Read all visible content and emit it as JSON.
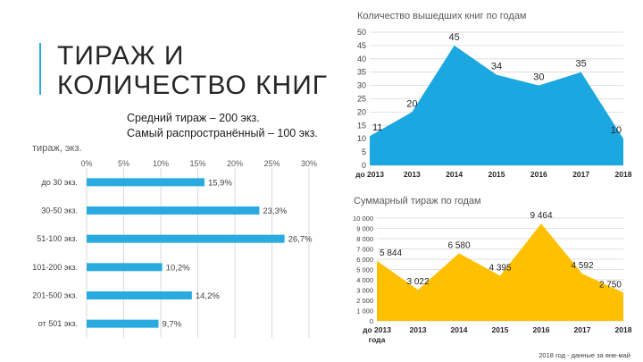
{
  "title": {
    "line1": "ТИРАЖ И",
    "line2": "КОЛИЧЕСТВО КНИГ"
  },
  "summary": {
    "avg": "Средний тираж – 200 экз.",
    "common": "Самый распространённый – 100 экз."
  },
  "footnote": "2018 год - данные за янв-май",
  "colors": {
    "accent": "#29abe2",
    "bars": "#29abe2",
    "books_area": "#1ba8e0",
    "circulation_area": "#ffc000",
    "grid": "#d9d9d9"
  },
  "chart_data": [
    {
      "type": "bar",
      "orientation": "horizontal",
      "title": "",
      "ylabel": "тираж, экз.",
      "categories": [
        "до 30 экз.",
        "30-50 экз.",
        "51-100 экз.",
        "101-200 экз.",
        "201-500 экз.",
        "от 501 экз."
      ],
      "values": [
        15.9,
        23.3,
        26.7,
        10.2,
        14.2,
        9.7
      ],
      "value_labels": [
        "15,9%",
        "23,3%",
        "26,7%",
        "10,2%",
        "14,2%",
        "9,7%"
      ],
      "xticks": [
        "0%",
        "5%",
        "10%",
        "15%",
        "20%",
        "25%",
        "30%"
      ],
      "xlim": [
        0,
        30
      ],
      "grid": true
    },
    {
      "type": "area",
      "title": "Количество вышедших книг по годам",
      "categories": [
        "до 2013",
        "2013",
        "2014",
        "2015",
        "2016",
        "2017",
        "2018"
      ],
      "values": [
        11,
        20,
        45,
        34,
        30,
        35,
        10
      ],
      "value_labels": [
        "11",
        "20",
        "45",
        "34",
        "30",
        "35",
        "10"
      ],
      "yticks": [
        "0",
        "5",
        "10",
        "15",
        "20",
        "25",
        "30",
        "35",
        "40",
        "45",
        "50"
      ],
      "ylim": [
        0,
        50
      ],
      "grid": true
    },
    {
      "type": "area",
      "title": "Суммарный тираж по годам",
      "categories": [
        "до 2013 года",
        "2013",
        "2014",
        "2015",
        "2016",
        "2017",
        "2018"
      ],
      "values": [
        5844,
        3022,
        6580,
        4395,
        9464,
        4592,
        2750
      ],
      "value_labels": [
        "5 844",
        "3 022",
        "6 580",
        "4 395",
        "9 464",
        "4 592",
        "2 750"
      ],
      "yticks": [
        "0",
        "1 000",
        "2 000",
        "3 000",
        "4 000",
        "5 000",
        "6 000",
        "7 000",
        "8 000",
        "9 000",
        "10 000"
      ],
      "ylim": [
        0,
        10000
      ],
      "grid": true
    }
  ]
}
